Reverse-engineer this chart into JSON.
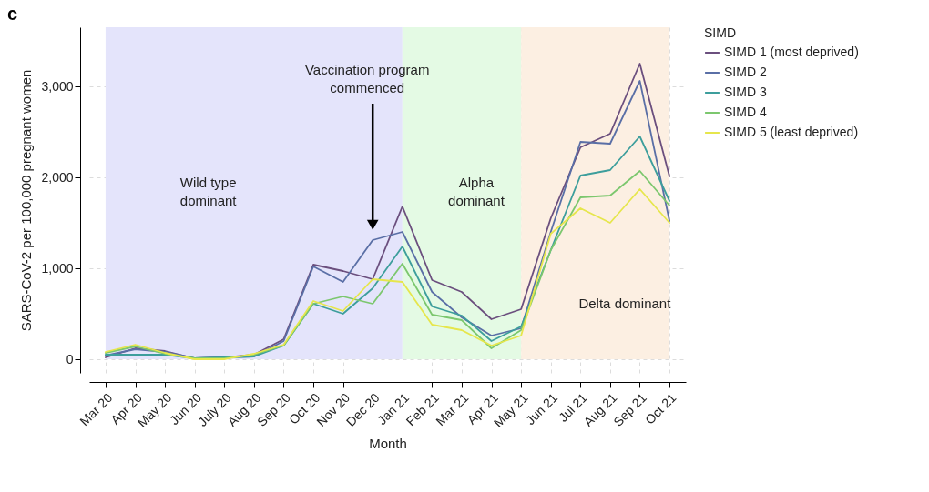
{
  "chart_data": {
    "type": "line",
    "xlabel": "Month",
    "ylabel": "SARS-CoV-2 per 100,000 pregnant women",
    "legend_title": "SIMD",
    "legend": "right",
    "grid": true,
    "line_style": "solid",
    "marker": "none",
    "categories": [
      "Mar 20",
      "Apr 20",
      "May 20",
      "Jun 20",
      "July 20",
      "Aug 20",
      "Sep 20",
      "Oct 20",
      "Nov 20",
      "Dec 20",
      "Jan 21",
      "Feb 21",
      "Mar 21",
      "Apr 21",
      "May 21",
      "Jun 21",
      "Jul 21",
      "Aug 21",
      "Sep 21",
      "Oct 21"
    ],
    "ylim": [
      -150,
      3650
    ],
    "yticks": [
      0,
      {
        "value": 1000,
        "label": "1,000"
      },
      {
        "value": 2000,
        "label": "2,000"
      },
      {
        "value": 3000,
        "label": "3,000"
      }
    ],
    "series": [
      {
        "name": "SIMD 1 (most deprived)",
        "color": "#6b4f7e",
        "values": [
          20,
          120,
          90,
          10,
          20,
          50,
          220,
          1040,
          970,
          880,
          1680,
          870,
          740,
          440,
          550,
          1550,
          2330,
          2480,
          3250,
          2010
        ]
      },
      {
        "name": "SIMD 2",
        "color": "#5a6fa6",
        "values": [
          40,
          110,
          80,
          10,
          20,
          30,
          200,
          1020,
          850,
          1310,
          1400,
          740,
          460,
          260,
          340,
          1400,
          2390,
          2370,
          3060,
          1520
        ]
      },
      {
        "name": "SIMD 3",
        "color": "#3d9e9c",
        "values": [
          50,
          50,
          50,
          10,
          20,
          30,
          150,
          610,
          500,
          780,
          1240,
          580,
          480,
          200,
          360,
          1200,
          2020,
          2080,
          2450,
          1740
        ]
      },
      {
        "name": "SIMD 4",
        "color": "#7cc76e",
        "values": [
          70,
          140,
          60,
          10,
          10,
          50,
          150,
          610,
          690,
          610,
          1050,
          490,
          430,
          120,
          320,
          1200,
          1780,
          1800,
          2070,
          1690
        ]
      },
      {
        "name": "SIMD 5 (least deprived)",
        "color": "#e6e64c",
        "values": [
          80,
          160,
          70,
          0,
          0,
          60,
          160,
          640,
          530,
          880,
          850,
          380,
          320,
          150,
          260,
          1380,
          1660,
          1500,
          1870,
          1500
        ]
      }
    ],
    "bands": [
      {
        "axis": "x",
        "from": "Mar 20",
        "to": "Jan 21",
        "label": "Wild type dominant",
        "color": "#e4e4fb"
      },
      {
        "axis": "x",
        "from": "Jan 21",
        "to": "May 21",
        "label": "Alpha dominant",
        "color": "#e4fae4"
      },
      {
        "axis": "x",
        "from": "May 21",
        "to": "Oct 21",
        "label": "Delta dominant",
        "color": "#fcefe2"
      }
    ],
    "annotations": [
      "c",
      "Vaccination program commenced"
    ]
  }
}
